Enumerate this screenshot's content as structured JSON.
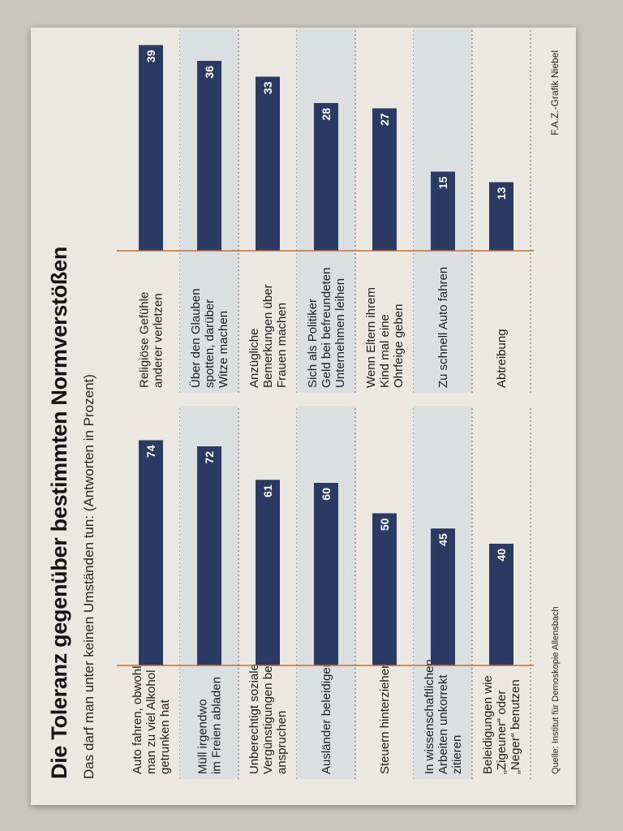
{
  "title": "Die Toleranz gegenüber bestimmten Normverstößen",
  "subtitle": "Das darf man unter keinen Umständen tun: (Antworten in Prozent)",
  "source": "Quelle: Institut für Demoskopie Allensbach",
  "credit": "F.A.Z.-Grafik Niebel",
  "colors": {
    "bar": "#2b3a63",
    "baseline": "#c0703a",
    "paper": "#ebe8e1",
    "stripe": "#dcdfe0"
  },
  "chart_data": [
    {
      "type": "bar",
      "orientation": "horizontal",
      "categories": [
        [
          "Auto fahren, obwohl",
          "man zu viel Alkohol",
          "getrunken hat"
        ],
        [
          "Müll irgendwo",
          "im Freien abladen"
        ],
        [
          "Unberechtigt soziale",
          "Vergünstigungen be-",
          "anspruchen"
        ],
        [
          "Ausländer beleidigen"
        ],
        [
          "Steuern hinterziehen"
        ],
        [
          "In wissenschaftlichen",
          "Arbeiten unkorrekt",
          "zitieren"
        ],
        [
          "Beleidigungen wie",
          "„Zigeuner“ oder",
          "„Neger“ benutzen"
        ]
      ],
      "values": [
        74,
        72,
        61,
        60,
        50,
        45,
        40
      ],
      "value_labels": [
        "74",
        "72",
        "61",
        "60",
        "50",
        "45",
        "40"
      ],
      "xlim": [
        0,
        80
      ]
    },
    {
      "type": "bar",
      "orientation": "horizontal",
      "categories": [
        [
          "Religiöse Gefühle",
          "anderer verletzen"
        ],
        [
          "Über den Glauben",
          "spotten, darüber",
          "Witze machen"
        ],
        [
          "Anzügliche",
          "Bemerkungen über",
          "Frauen machen"
        ],
        [
          "Sich als Politiker",
          "Geld bei befreundeten",
          "Unternehmen leihen"
        ],
        [
          "Wenn Eltern ihrem",
          "Kind mal eine",
          "Ohrfeige geben"
        ],
        [
          "Zu schnell Auto fahren"
        ],
        [
          "Abtreibung"
        ]
      ],
      "values": [
        39,
        36,
        33,
        28,
        27,
        15,
        13
      ],
      "value_labels": [
        "39",
        "36",
        "33",
        "28",
        "27",
        "15",
        "13"
      ],
      "xlim": [
        0,
        40
      ]
    }
  ]
}
